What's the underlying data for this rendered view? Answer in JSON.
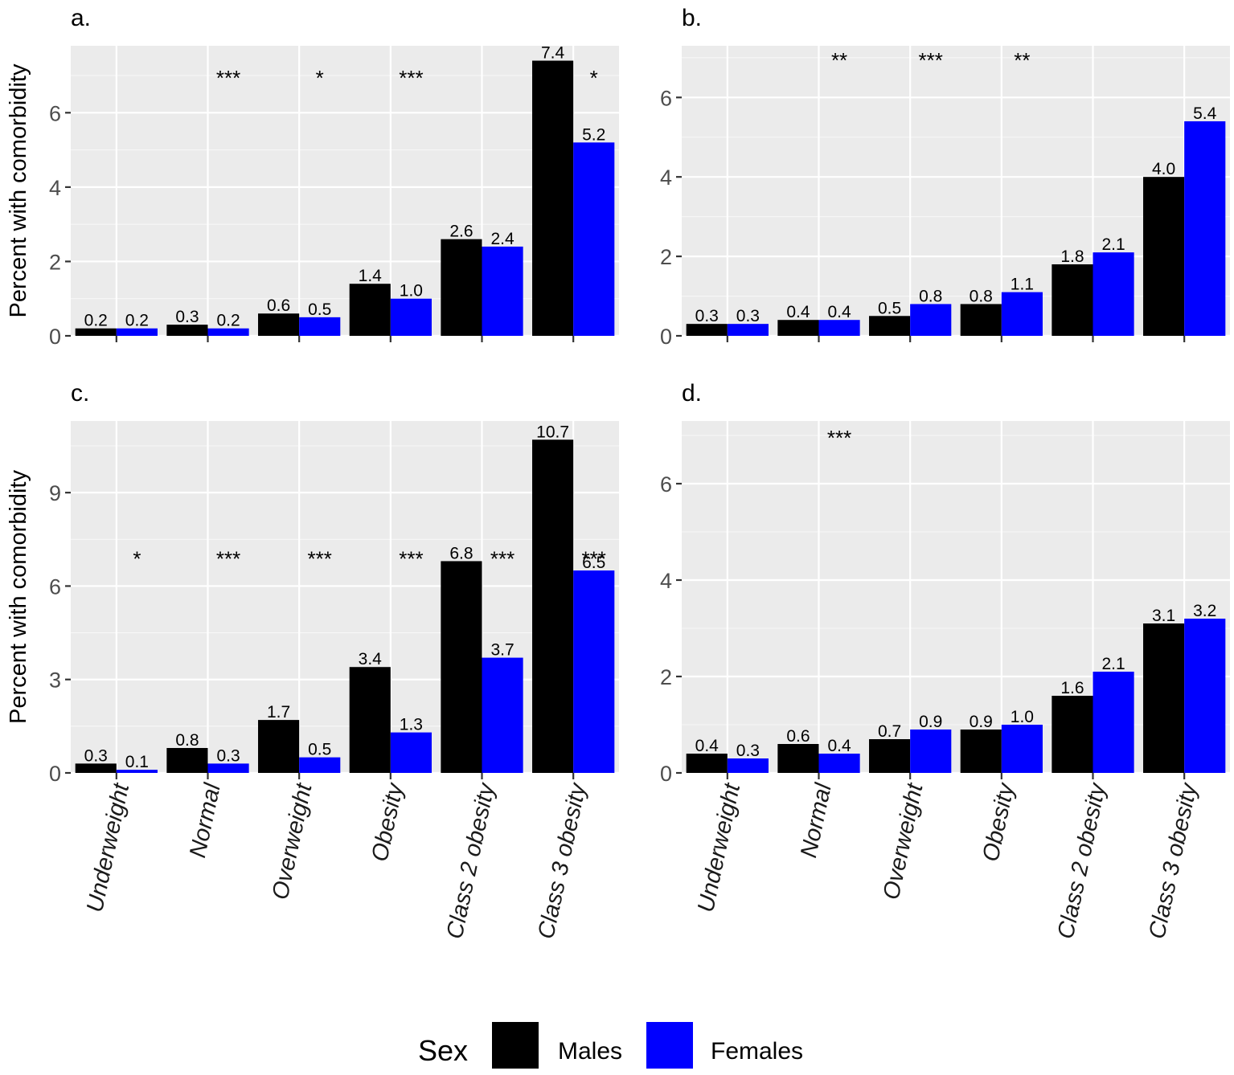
{
  "chart_data": [
    {
      "type": "bar",
      "panel": "a.",
      "ylabel": "Percent with comorbidity",
      "categories": [
        "Underweight",
        "Normal",
        "Overweight",
        "Obesity",
        "Class 2 obesity",
        "Class 3 obesity"
      ],
      "show_x_labels": false,
      "ylim": [
        0,
        7.8
      ],
      "yticks": [
        0,
        2,
        4,
        6
      ],
      "ytick_labels": [
        "0",
        "2",
        "4",
        "6"
      ],
      "series": [
        {
          "name": "Males",
          "values": [
            0.2,
            0.3,
            0.6,
            1.4,
            2.6,
            7.4
          ],
          "labels": [
            "0.2",
            "0.3",
            "0.6",
            "1.4",
            "2.6",
            "7.4"
          ]
        },
        {
          "name": "Females",
          "values": [
            0.2,
            0.2,
            0.5,
            1.0,
            2.4,
            5.2
          ],
          "labels": [
            "0.2",
            "0.2",
            "0.5",
            "1.0",
            "2.4",
            "5.2"
          ]
        }
      ],
      "significance": [
        "",
        "***",
        "*",
        "***",
        "",
        "*"
      ],
      "significance_y": 7.0
    },
    {
      "type": "bar",
      "panel": "b.",
      "ylabel": "",
      "categories": [
        "Underweight",
        "Normal",
        "Overweight",
        "Obesity",
        "Class 2 obesity",
        "Class 3 obesity"
      ],
      "show_x_labels": false,
      "ylim": [
        0,
        7.3
      ],
      "yticks": [
        0,
        2,
        4,
        6
      ],
      "ytick_labels": [
        "0",
        "2",
        "4",
        "6"
      ],
      "series": [
        {
          "name": "Males",
          "values": [
            0.3,
            0.4,
            0.5,
            0.8,
            1.8,
            4.0
          ],
          "labels": [
            "0.3",
            "0.4",
            "0.5",
            "0.8",
            "1.8",
            "4.0"
          ]
        },
        {
          "name": "Females",
          "values": [
            0.3,
            0.4,
            0.8,
            1.1,
            2.1,
            5.4
          ],
          "labels": [
            "0.3",
            "0.4",
            "0.8",
            "1.1",
            "2.1",
            "5.4"
          ]
        }
      ],
      "significance": [
        "",
        "**",
        "***",
        "**",
        "",
        ""
      ],
      "significance_y": 7.0
    },
    {
      "type": "bar",
      "panel": "c.",
      "ylabel": "Percent with comorbidity",
      "categories": [
        "Underweight",
        "Normal",
        "Overweight",
        "Obesity",
        "Class 2 obesity",
        "Class 3 obesity"
      ],
      "show_x_labels": true,
      "ylim": [
        0,
        11.3
      ],
      "yticks": [
        0,
        3,
        6,
        9
      ],
      "ytick_labels": [
        "0",
        "3",
        "6",
        "9"
      ],
      "series": [
        {
          "name": "Males",
          "values": [
            0.3,
            0.8,
            1.7,
            3.4,
            6.8,
            10.7
          ],
          "labels": [
            "0.3",
            "0.8",
            "1.7",
            "3.4",
            "6.8",
            "10.7"
          ]
        },
        {
          "name": "Females",
          "values": [
            0.1,
            0.3,
            0.5,
            1.3,
            3.7,
            6.5
          ],
          "labels": [
            "0.1",
            "0.3",
            "0.5",
            "1.3",
            "3.7",
            "6.5"
          ]
        }
      ],
      "significance": [
        "*",
        "***",
        "***",
        "***",
        "***",
        "***"
      ],
      "significance_y": 6.95
    },
    {
      "type": "bar",
      "panel": "d.",
      "ylabel": "",
      "categories": [
        "Underweight",
        "Normal",
        "Overweight",
        "Obesity",
        "Class 2 obesity",
        "Class 3 obesity"
      ],
      "show_x_labels": true,
      "ylim": [
        0,
        7.3
      ],
      "yticks": [
        0,
        2,
        4,
        6
      ],
      "ytick_labels": [
        "0",
        "2",
        "4",
        "6"
      ],
      "series": [
        {
          "name": "Males",
          "values": [
            0.4,
            0.6,
            0.7,
            0.9,
            1.6,
            3.1
          ],
          "labels": [
            "0.4",
            "0.6",
            "0.7",
            "0.9",
            "1.6",
            "3.1"
          ]
        },
        {
          "name": "Females",
          "values": [
            0.3,
            0.4,
            0.9,
            1.0,
            2.1,
            3.2
          ],
          "labels": [
            "0.3",
            "0.4",
            "0.9",
            "1.0",
            "2.1",
            "3.2"
          ]
        }
      ],
      "significance": [
        "",
        "***",
        "",
        "",
        "",
        ""
      ],
      "significance_y": 7.0
    }
  ],
  "legend": {
    "title": "Sex",
    "placement": "bottom",
    "entries": [
      {
        "label": "Males",
        "color": "#000000"
      },
      {
        "label": "Females",
        "color": "#0000ff"
      }
    ]
  },
  "colors": {
    "males": "#000000",
    "females": "#0000ff",
    "panel_background": "#ebebeb",
    "grid": "#ffffff"
  }
}
